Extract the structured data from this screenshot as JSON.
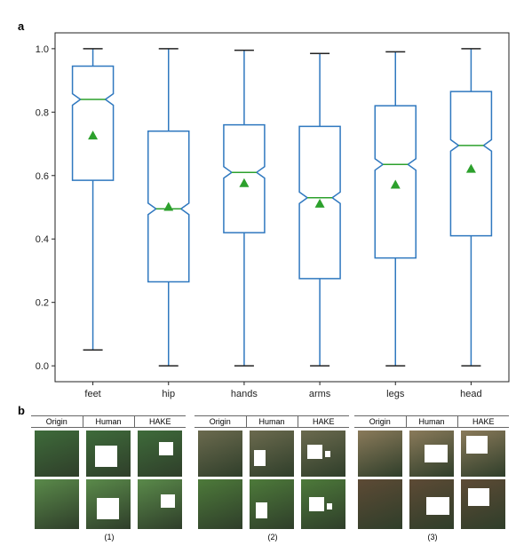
{
  "panels": {
    "a": "a",
    "b": "b"
  },
  "chart_data": {
    "type": "box",
    "categories": [
      "feet",
      "hip",
      "hands",
      "arms",
      "legs",
      "head"
    ],
    "ylim": [
      -0.05,
      1.05
    ],
    "yticks": [
      "0.0",
      "0.2",
      "0.4",
      "0.6",
      "0.8",
      "1.0"
    ],
    "notched": true,
    "boxes": [
      {
        "whislo": 0.05,
        "q1": 0.585,
        "med": 0.84,
        "q3": 0.945,
        "whishi": 1.0,
        "mean": 0.725
      },
      {
        "whislo": 0.0,
        "q1": 0.265,
        "med": 0.495,
        "q3": 0.74,
        "whishi": 1.0,
        "mean": 0.5
      },
      {
        "whislo": 0.0,
        "q1": 0.42,
        "med": 0.61,
        "q3": 0.76,
        "whishi": 0.995,
        "mean": 0.575
      },
      {
        "whislo": 0.0,
        "q1": 0.275,
        "med": 0.53,
        "q3": 0.755,
        "whishi": 0.985,
        "mean": 0.51
      },
      {
        "whislo": 0.0,
        "q1": 0.34,
        "med": 0.635,
        "q3": 0.82,
        "whishi": 0.99,
        "mean": 0.57
      },
      {
        "whislo": 0.0,
        "q1": 0.41,
        "med": 0.695,
        "q3": 0.865,
        "whishi": 1.0,
        "mean": 0.62
      }
    ],
    "colors": {
      "box": "#2f78bf",
      "median": "#2ca02c",
      "mean": "#2ca02c"
    }
  },
  "examples": [
    {
      "columns": [
        "Origin",
        "Human",
        "HAKE"
      ],
      "caption": "(1)",
      "bg": [
        "#3e6b3a",
        "#5a8a4a"
      ]
    },
    {
      "columns": [
        "Origin",
        "Human",
        "HAKE"
      ],
      "caption": "(2)",
      "bg": [
        "#6b6a4e",
        "#4d7a3a"
      ]
    },
    {
      "columns": [
        "Origin",
        "Human",
        "HAKE"
      ],
      "caption": "(3)",
      "bg": [
        "#8a7a5a",
        "#5d4a35"
      ]
    }
  ]
}
